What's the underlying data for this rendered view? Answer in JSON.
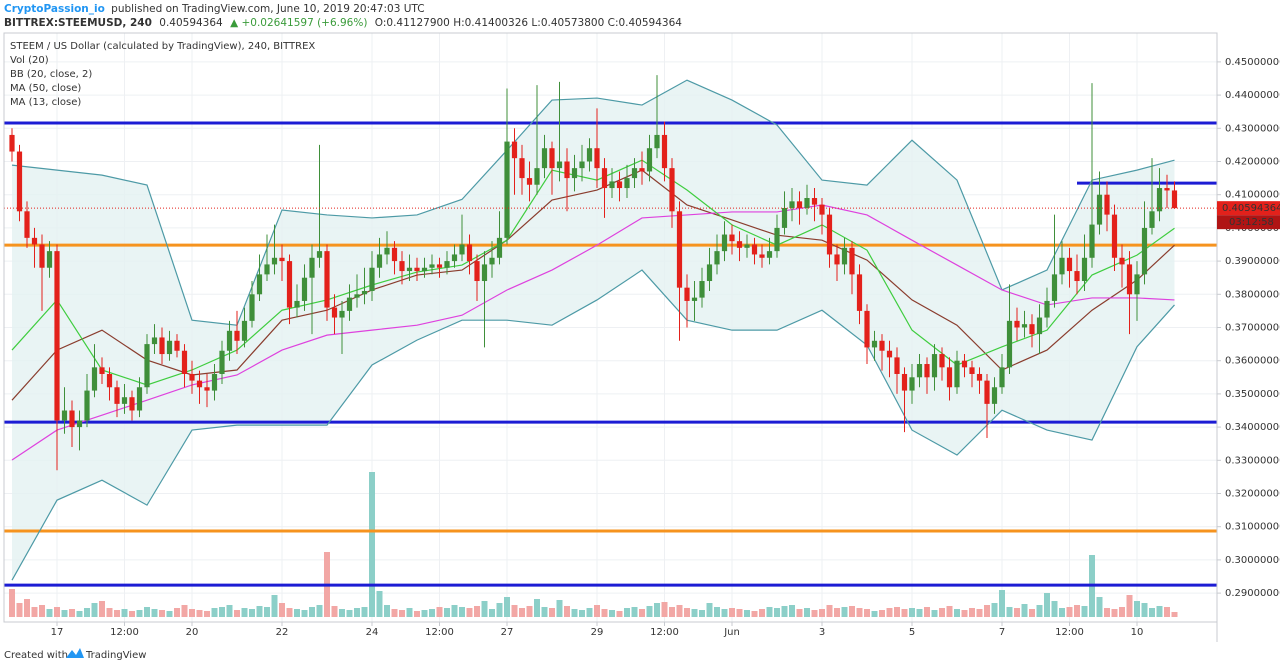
{
  "header": {
    "author": "CryptoPassion_io",
    "published": "published on TradingView.com, June 10, 2019 20:47:03 UTC",
    "symbol": "BITTREX:STEEMUSD, 240",
    "price": "0.40594364",
    "change": "▲ +0.02641597 (+6.96%)",
    "ohlc": "O:0.41127900 H:0.41400326 L:0.40573800 C:0.40594364"
  },
  "footer": {
    "created": "Created with",
    "brand": "TradingView"
  },
  "chart_data": {
    "type": "candlestick",
    "title": "STEEM / US Dollar (calculated by TradingView), 240, BITTREX",
    "indicator_labels": [
      "Vol (20)",
      "BB (20, close, 2)",
      "MA (50, close)",
      "MA (13, close)"
    ],
    "up_color": "#3f8f3a",
    "down_color": "#e3211b",
    "volume_up_color": "#8ccfc8",
    "volume_down_color": "#f2a7a5",
    "open": [
      0.428,
      0.423,
      0.405,
      0.397,
      0.395,
      0.388,
      0.393,
      0.342,
      0.345,
      0.34,
      0.342,
      0.351,
      0.358,
      0.356,
      0.352,
      0.347,
      0.349,
      0.345,
      0.352,
      0.365,
      0.367,
      0.362,
      0.366,
      0.363,
      0.356,
      0.354,
      0.352,
      0.351,
      0.356,
      0.363,
      0.369,
      0.366,
      0.372,
      0.38,
      0.386,
      0.389,
      0.391,
      0.39,
      0.376,
      0.378,
      0.385,
      0.391,
      0.393,
      0.376,
      0.373,
      0.375,
      0.379,
      0.38,
      0.381,
      0.388,
      0.392,
      0.394,
      0.39,
      0.387,
      0.388,
      0.387,
      0.388,
      0.389,
      0.388,
      0.39,
      0.392,
      0.395,
      0.39,
      0.384,
      0.389,
      0.391,
      0.397,
      0.426,
      0.421,
      0.415,
      0.413,
      0.418,
      0.424,
      0.418,
      0.42,
      0.415,
      0.418,
      0.42,
      0.424,
      0.418,
      0.412,
      0.414,
      0.412,
      0.415,
      0.418,
      0.417,
      0.424,
      0.428,
      0.418,
      0.405,
      0.382,
      0.378,
      0.379,
      0.384,
      0.389,
      0.393,
      0.398,
      0.396,
      0.394,
      0.395,
      0.392,
      0.391,
      0.393,
      0.4,
      0.406,
      0.408,
      0.406,
      0.409,
      0.407,
      0.404,
      0.392,
      0.389,
      0.394,
      0.386,
      0.375,
      0.364,
      0.366,
      0.363,
      0.361,
      0.356,
      0.351,
      0.355,
      0.359,
      0.355,
      0.362,
      0.358,
      0.352,
      0.36,
      0.358,
      0.356,
      0.354,
      0.347,
      0.352,
      0.358,
      0.372,
      0.37,
      0.371,
      0.368,
      0.373,
      0.378,
      0.386,
      0.391,
      0.387,
      0.384,
      0.391,
      0.401,
      0.41,
      0.404,
      0.391,
      0.389,
      0.38,
      0.386,
      0.4,
      0.405,
      0.412,
      0.411279
    ],
    "high": [
      0.43,
      0.425,
      0.408,
      0.4,
      0.398,
      0.396,
      0.395,
      0.352,
      0.348,
      0.345,
      0.356,
      0.365,
      0.361,
      0.358,
      0.354,
      0.353,
      0.351,
      0.355,
      0.368,
      0.371,
      0.37,
      0.369,
      0.368,
      0.365,
      0.36,
      0.357,
      0.356,
      0.359,
      0.366,
      0.372,
      0.375,
      0.376,
      0.384,
      0.392,
      0.398,
      0.401,
      0.395,
      0.392,
      0.383,
      0.389,
      0.395,
      0.425,
      0.395,
      0.38,
      0.378,
      0.383,
      0.386,
      0.388,
      0.393,
      0.397,
      0.399,
      0.396,
      0.393,
      0.392,
      0.391,
      0.391,
      0.392,
      0.391,
      0.393,
      0.395,
      0.404,
      0.398,
      0.392,
      0.393,
      0.396,
      0.405,
      0.442,
      0.43,
      0.425,
      0.42,
      0.443,
      0.428,
      0.426,
      0.444,
      0.424,
      0.422,
      0.425,
      0.427,
      0.436,
      0.421,
      0.418,
      0.417,
      0.419,
      0.421,
      0.423,
      0.428,
      0.446,
      0.432,
      0.421,
      0.408,
      0.386,
      0.384,
      0.388,
      0.394,
      0.398,
      0.402,
      0.401,
      0.399,
      0.398,
      0.397,
      0.395,
      0.397,
      0.404,
      0.411,
      0.412,
      0.411,
      0.413,
      0.412,
      0.409,
      0.406,
      0.395,
      0.397,
      0.396,
      0.389,
      0.377,
      0.369,
      0.368,
      0.366,
      0.364,
      0.358,
      0.359,
      0.362,
      0.361,
      0.365,
      0.364,
      0.361,
      0.363,
      0.362,
      0.36,
      0.358,
      0.356,
      0.355,
      0.362,
      0.383,
      0.376,
      0.375,
      0.374,
      0.377,
      0.382,
      0.404,
      0.396,
      0.394,
      0.392,
      0.398,
      0.4436,
      0.417,
      0.414,
      0.407,
      0.395,
      0.393,
      0.39,
      0.408,
      0.421,
      0.418,
      0.416,
      0.41400326
    ],
    "low": [
      0.42,
      0.402,
      0.394,
      0.388,
      0.375,
      0.385,
      0.327,
      0.338,
      0.334,
      0.333,
      0.34,
      0.349,
      0.353,
      0.348,
      0.343,
      0.344,
      0.342,
      0.343,
      0.35,
      0.362,
      0.359,
      0.36,
      0.361,
      0.352,
      0.35,
      0.347,
      0.346,
      0.348,
      0.353,
      0.36,
      0.362,
      0.364,
      0.37,
      0.378,
      0.384,
      0.386,
      0.384,
      0.371,
      0.373,
      0.375,
      0.368,
      0.388,
      0.372,
      0.368,
      0.362,
      0.372,
      0.376,
      0.377,
      0.378,
      0.385,
      0.389,
      0.386,
      0.383,
      0.384,
      0.384,
      0.385,
      0.386,
      0.385,
      0.386,
      0.388,
      0.39,
      0.386,
      0.378,
      0.364,
      0.385,
      0.389,
      0.395,
      0.41,
      0.41,
      0.408,
      0.41,
      0.415,
      0.41,
      0.414,
      0.405,
      0.411,
      0.414,
      0.417,
      0.412,
      0.403,
      0.409,
      0.408,
      0.409,
      0.412,
      0.413,
      0.414,
      0.421,
      0.414,
      0.4,
      0.366,
      0.37,
      0.372,
      0.376,
      0.381,
      0.386,
      0.39,
      0.392,
      0.39,
      0.391,
      0.389,
      0.388,
      0.389,
      0.391,
      0.398,
      0.402,
      0.401,
      0.404,
      0.402,
      0.398,
      0.388,
      0.384,
      0.386,
      0.38,
      0.371,
      0.359,
      0.36,
      0.357,
      0.355,
      0.35,
      0.3385,
      0.347,
      0.352,
      0.35,
      0.351,
      0.354,
      0.348,
      0.35,
      0.355,
      0.352,
      0.35,
      0.3367,
      0.344,
      0.35,
      0.356,
      0.366,
      0.367,
      0.364,
      0.362,
      0.37,
      0.376,
      0.383,
      0.382,
      0.38,
      0.381,
      0.388,
      0.398,
      0.399,
      0.387,
      0.382,
      0.368,
      0.372,
      0.383,
      0.398,
      0.402,
      0.406,
      0.405738
    ],
    "close": [
      0.423,
      0.405,
      0.397,
      0.395,
      0.388,
      0.393,
      0.342,
      0.345,
      0.34,
      0.342,
      0.351,
      0.358,
      0.356,
      0.352,
      0.347,
      0.349,
      0.345,
      0.352,
      0.365,
      0.367,
      0.362,
      0.366,
      0.363,
      0.356,
      0.354,
      0.352,
      0.351,
      0.356,
      0.363,
      0.369,
      0.366,
      0.372,
      0.38,
      0.386,
      0.389,
      0.391,
      0.39,
      0.376,
      0.378,
      0.385,
      0.391,
      0.393,
      0.376,
      0.373,
      0.375,
      0.379,
      0.38,
      0.381,
      0.388,
      0.392,
      0.394,
      0.39,
      0.387,
      0.388,
      0.387,
      0.388,
      0.389,
      0.388,
      0.39,
      0.392,
      0.395,
      0.39,
      0.384,
      0.389,
      0.391,
      0.397,
      0.426,
      0.421,
      0.415,
      0.413,
      0.418,
      0.424,
      0.418,
      0.42,
      0.415,
      0.418,
      0.42,
      0.424,
      0.418,
      0.412,
      0.414,
      0.412,
      0.415,
      0.418,
      0.417,
      0.424,
      0.428,
      0.418,
      0.405,
      0.382,
      0.378,
      0.379,
      0.384,
      0.389,
      0.393,
      0.398,
      0.396,
      0.394,
      0.395,
      0.392,
      0.391,
      0.393,
      0.4,
      0.406,
      0.408,
      0.406,
      0.409,
      0.407,
      0.404,
      0.392,
      0.389,
      0.394,
      0.386,
      0.375,
      0.364,
      0.366,
      0.363,
      0.361,
      0.356,
      0.351,
      0.355,
      0.359,
      0.355,
      0.362,
      0.358,
      0.352,
      0.36,
      0.358,
      0.356,
      0.354,
      0.347,
      0.352,
      0.358,
      0.372,
      0.37,
      0.371,
      0.368,
      0.373,
      0.378,
      0.386,
      0.391,
      0.387,
      0.384,
      0.391,
      0.401,
      0.41,
      0.404,
      0.391,
      0.389,
      0.38,
      0.386,
      0.4,
      0.405,
      0.412,
      0.411279,
      0.40594364
    ],
    "volume": [
      28,
      14,
      18,
      10,
      12,
      8,
      10,
      7,
      8,
      6,
      9,
      14,
      16,
      9,
      7,
      8,
      6,
      7,
      10,
      8,
      7,
      6,
      9,
      12,
      8,
      7,
      6,
      9,
      10,
      12,
      7,
      9,
      8,
      11,
      10,
      22,
      14,
      9,
      8,
      7,
      10,
      12,
      65,
      11,
      8,
      7,
      9,
      10,
      145,
      26,
      12,
      8,
      7,
      9,
      6,
      7,
      8,
      10,
      9,
      12,
      10,
      9,
      11,
      16,
      8,
      14,
      20,
      12,
      9,
      11,
      18,
      10,
      9,
      17,
      11,
      8,
      7,
      9,
      12,
      8,
      7,
      6,
      9,
      10,
      8,
      11,
      14,
      15,
      10,
      12,
      9,
      8,
      7,
      14,
      10,
      8,
      9,
      8,
      7,
      6,
      8,
      10,
      9,
      11,
      12,
      8,
      9,
      7,
      8,
      12,
      9,
      10,
      11,
      9,
      8,
      6,
      7,
      9,
      10,
      8,
      9,
      8,
      10,
      7,
      9,
      11,
      8,
      7,
      9,
      8,
      12,
      14,
      27,
      10,
      9,
      13,
      8,
      12,
      24,
      16,
      9,
      10,
      12,
      11,
      62,
      20,
      9,
      8,
      10,
      22,
      16,
      14,
      9,
      11,
      10,
      5
    ],
    "indicator_x": [
      0,
      6,
      12,
      18,
      24,
      30,
      36,
      42,
      48,
      54,
      60,
      66,
      72,
      78,
      84,
      90,
      96,
      102,
      108,
      114,
      120,
      126,
      132,
      138,
      144,
      150,
      155
    ],
    "bb_fill": "#e4f1f1",
    "bb_upper": {
      "color": "#4d9aa6",
      "values": [
        0.4189,
        0.4174,
        0.4159,
        0.4129,
        0.3722,
        0.3707,
        0.4054,
        0.4039,
        0.403,
        0.4039,
        0.4086,
        0.4234,
        0.4385,
        0.4391,
        0.437,
        0.4445,
        0.4385,
        0.431,
        0.4144,
        0.4129,
        0.4264,
        0.4144,
        0.3813,
        0.3873,
        0.4144,
        0.4174,
        0.4204
      ]
    },
    "bb_lower": {
      "color": "#4d9aa6",
      "values": [
        0.2939,
        0.318,
        0.324,
        0.3165,
        0.3391,
        0.3406,
        0.3406,
        0.3406,
        0.3587,
        0.3662,
        0.3722,
        0.3722,
        0.3707,
        0.3783,
        0.3873,
        0.3722,
        0.3692,
        0.3692,
        0.3752,
        0.3647,
        0.3391,
        0.3316,
        0.3451,
        0.3391,
        0.3361,
        0.3642,
        0.3768
      ]
    },
    "bb_basis": {
      "color": "#8a3d2e",
      "values": [
        0.3481,
        0.3632,
        0.3692,
        0.3602,
        0.3557,
        0.3572,
        0.3722,
        0.3752,
        0.3813,
        0.3858,
        0.3873,
        0.3963,
        0.4084,
        0.4114,
        0.4174,
        0.4069,
        0.4024,
        0.3978,
        0.3963,
        0.3903,
        0.3783,
        0.3707,
        0.3572,
        0.3632,
        0.3752,
        0.3843,
        0.3948
      ]
    },
    "ma50": {
      "color": "#de42de",
      "values": [
        0.3301,
        0.3391,
        0.3436,
        0.3481,
        0.3527,
        0.3557,
        0.3632,
        0.3677,
        0.3692,
        0.3707,
        0.3737,
        0.3813,
        0.3873,
        0.3948,
        0.403,
        0.4039,
        0.4048,
        0.4048,
        0.4069,
        0.4039,
        0.3963,
        0.3888,
        0.3813,
        0.3768,
        0.3789,
        0.3789,
        0.3783
      ]
    },
    "ma13": {
      "color": "#3fcd3f",
      "values": [
        0.3632,
        0.3783,
        0.3572,
        0.3527,
        0.3572,
        0.3632,
        0.3752,
        0.3783,
        0.3828,
        0.3867,
        0.3888,
        0.3963,
        0.4174,
        0.4144,
        0.4204,
        0.4114,
        0.4009,
        0.3948,
        0.4009,
        0.3933,
        0.3692,
        0.3587,
        0.3642,
        0.3692,
        0.3858,
        0.3918,
        0.3999
      ]
    },
    "horizontal_lines": [
      {
        "value": 0.4316,
        "color": "#1c1cd4"
      },
      {
        "value": 0.3948,
        "color": "#f6931e"
      },
      {
        "value": 0.3415,
        "color": "#1c1cd4"
      },
      {
        "value": 0.3087,
        "color": "#f6931e"
      },
      {
        "value": 0.2924,
        "color": "#1c1cd4"
      },
      {
        "value": 0.4135,
        "color": "#1c1cd4",
        "from": 142
      }
    ],
    "last_price": {
      "value": 0.40594364,
      "label": "0.40594364",
      "color": "#e3211b"
    },
    "countdown": "03:12:58",
    "xticks": [
      {
        "value": 6,
        "label": "17"
      },
      {
        "value": 15,
        "label": "12:00"
      },
      {
        "value": 24,
        "label": "20"
      },
      {
        "value": 36,
        "label": "22"
      },
      {
        "value": 48,
        "label": "24"
      },
      {
        "value": 57,
        "label": "12:00"
      },
      {
        "value": 66,
        "label": "27"
      },
      {
        "value": 78,
        "label": "29"
      },
      {
        "value": 87,
        "label": "12:00"
      },
      {
        "value": 96,
        "label": "Jun"
      },
      {
        "value": 108,
        "label": "3"
      },
      {
        "value": 120,
        "label": "5"
      },
      {
        "value": 132,
        "label": "7"
      },
      {
        "value": 141,
        "label": "12:00"
      },
      {
        "value": 150,
        "label": "10"
      }
    ],
    "ylim": [
      0.2819,
      0.4581
    ],
    "yticks": [
      {
        "value": 0.29,
        "label": "0.29000000"
      },
      {
        "value": 0.3,
        "label": "0.30000000"
      },
      {
        "value": 0.31,
        "label": "0.31000000"
      },
      {
        "value": 0.32,
        "label": "0.32000000"
      },
      {
        "value": 0.33,
        "label": "0.33000000"
      },
      {
        "value": 0.34,
        "label": "0.34000000"
      },
      {
        "value": 0.35,
        "label": "0.35000000"
      },
      {
        "value": 0.36,
        "label": "0.36000000"
      },
      {
        "value": 0.37,
        "label": "0.37000000"
      },
      {
        "value": 0.38,
        "label": "0.38000000"
      },
      {
        "value": 0.39,
        "label": "0.39000000"
      },
      {
        "value": 0.4,
        "label": "0.40000000"
      },
      {
        "value": 0.41,
        "label": "0.41000000"
      },
      {
        "value": 0.42,
        "label": "0.42000000"
      },
      {
        "value": 0.43,
        "label": "0.43000000"
      },
      {
        "value": 0.44,
        "label": "0.44000000"
      },
      {
        "value": 0.45,
        "label": "0.45000000"
      }
    ],
    "grid": true
  }
}
